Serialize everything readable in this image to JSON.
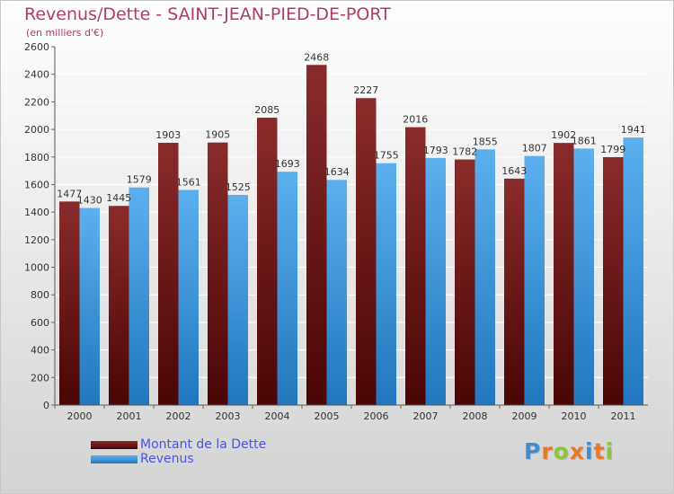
{
  "title": "Revenus/Dette - SAINT-JEAN-PIED-DE-PORT",
  "subtitle": "(en milliers d'€)",
  "logo": {
    "text": "Proxiti",
    "letters": [
      "P",
      "r",
      "o",
      "x",
      "i",
      "t",
      "i"
    ],
    "colors": [
      "#3a8fd6",
      "#e8782a",
      "#8cc63f",
      "#e8782a",
      "#3a8fd6",
      "#e8782a",
      "#8cc63f"
    ]
  },
  "chart_data": {
    "type": "bar",
    "title": "Revenus/Dette - SAINT-JEAN-PIED-DE-PORT",
    "subtitle": "(en milliers d'€)",
    "xlabel": "",
    "ylabel": "",
    "categories": [
      "2000",
      "2001",
      "2002",
      "2003",
      "2004",
      "2005",
      "2006",
      "2007",
      "2008",
      "2009",
      "2010",
      "2011"
    ],
    "series": [
      {
        "name": "Montant de la Dette",
        "color": "#7a1e1e",
        "values": [
          1477,
          1445,
          1903,
          1905,
          2085,
          2468,
          2227,
          2016,
          1782,
          1643,
          1902,
          1799
        ]
      },
      {
        "name": "Revenus",
        "color": "#3d9ae0",
        "values": [
          1430,
          1579,
          1561,
          1525,
          1693,
          1634,
          1755,
          1793,
          1855,
          1807,
          1861,
          1941
        ]
      }
    ],
    "ylim": [
      0,
      2600
    ],
    "yticks": [
      0,
      200,
      400,
      600,
      800,
      1000,
      1200,
      1400,
      1600,
      1800,
      2000,
      2200,
      2400,
      2600
    ],
    "data_labels": [
      [
        "1477",
        "1445",
        "1903",
        "1905",
        "2085",
        "2468",
        "2227",
        "2016",
        "1782",
        "1643",
        "1902",
        "1799"
      ],
      [
        "1430",
        "1579",
        "1561",
        "1525",
        "1693",
        "1634",
        "1755",
        "1793",
        "1855",
        "1807",
        "1861",
        "1941"
      ]
    ],
    "grid": true,
    "legend": "bottom-left"
  }
}
